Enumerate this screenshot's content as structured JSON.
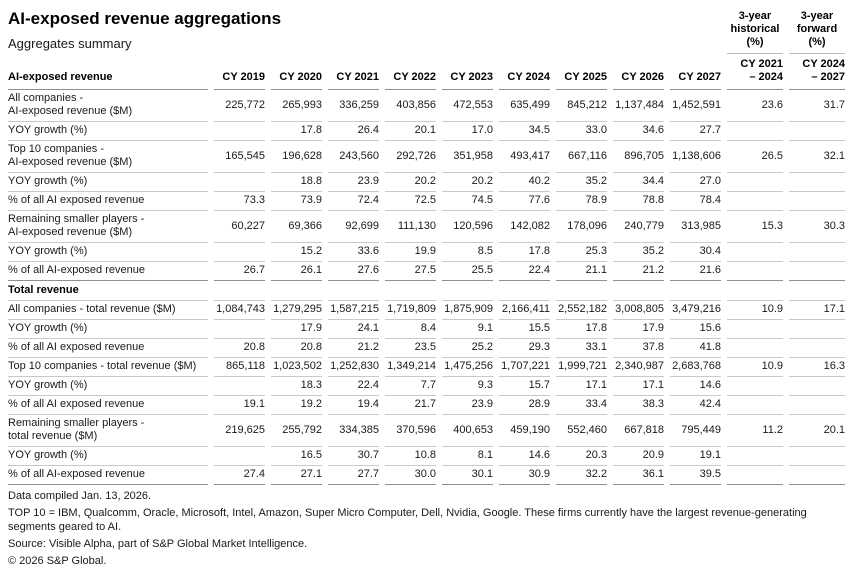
{
  "page": {
    "title": "AI-exposed revenue aggregations",
    "subtitle": "Aggregates summary"
  },
  "table": {
    "first_column_header": "AI-exposed revenue",
    "year_columns": [
      "CY 2019",
      "CY 2020",
      "CY 2021",
      "CY 2022",
      "CY 2023",
      "CY 2024",
      "CY 2025",
      "CY 2026",
      "CY 2027"
    ],
    "extra_columns": [
      {
        "group": "3-year\nhistorical\n(%)",
        "sub": "CY 2021\n– 2024"
      },
      {
        "group": "3-year\nforward\n(%)",
        "sub": "CY 2024\n– 2027"
      }
    ],
    "sections": [
      {
        "title": null,
        "rows": [
          {
            "label": "All companies -\nAI-exposed revenue ($M)",
            "values": [
              "225,772",
              "265,993",
              "336,259",
              "403,856",
              "472,553",
              "635,499",
              "845,212",
              "1,137,484",
              "1,452,591",
              "23.6",
              "31.7"
            ]
          },
          {
            "label": "YOY growth (%)",
            "values": [
              "",
              "17.8",
              "26.4",
              "20.1",
              "17.0",
              "34.5",
              "33.0",
              "34.6",
              "27.7",
              "",
              ""
            ]
          },
          {
            "label": "Top 10 companies -\nAI-exposed revenue ($M)",
            "values": [
              "165,545",
              "196,628",
              "243,560",
              "292,726",
              "351,958",
              "493,417",
              "667,116",
              "896,705",
              "1,138,606",
              "26.5",
              "32.1"
            ]
          },
          {
            "label": "YOY growth (%)",
            "values": [
              "",
              "18.8",
              "23.9",
              "20.2",
              "20.2",
              "40.2",
              "35.2",
              "34.4",
              "27.0",
              "",
              ""
            ]
          },
          {
            "label": "% of all AI exposed revenue",
            "values": [
              "73.3",
              "73.9",
              "72.4",
              "72.5",
              "74.5",
              "77.6",
              "78.9",
              "78.8",
              "78.4",
              "",
              ""
            ]
          },
          {
            "label": "Remaining smaller players -\nAI-exposed revenue ($M)",
            "values": [
              "60,227",
              "69,366",
              "92,699",
              "111,130",
              "120,596",
              "142,082",
              "178,096",
              "240,779",
              "313,985",
              "15.3",
              "30.3"
            ]
          },
          {
            "label": "YOY growth (%)",
            "values": [
              "",
              "15.2",
              "33.6",
              "19.9",
              "8.5",
              "17.8",
              "25.3",
              "35.2",
              "30.4",
              "",
              ""
            ]
          },
          {
            "label": "% of all AI-exposed revenue",
            "values": [
              "26.7",
              "26.1",
              "27.6",
              "27.5",
              "25.5",
              "22.4",
              "21.1",
              "21.2",
              "21.6",
              "",
              ""
            ]
          }
        ]
      },
      {
        "title": "Total revenue",
        "rows": [
          {
            "label": "All companies - total revenue ($M)",
            "values": [
              "1,084,743",
              "1,279,295",
              "1,587,215",
              "1,719,809",
              "1,875,909",
              "2,166,411",
              "2,552,182",
              "3,008,805",
              "3,479,216",
              "10.9",
              "17.1"
            ]
          },
          {
            "label": "YOY growth (%)",
            "values": [
              "",
              "17.9",
              "24.1",
              "8.4",
              "9.1",
              "15.5",
              "17.8",
              "17.9",
              "15.6",
              "",
              ""
            ]
          },
          {
            "label": "% of all AI exposed revenue",
            "values": [
              "20.8",
              "20.8",
              "21.2",
              "23.5",
              "25.2",
              "29.3",
              "33.1",
              "37.8",
              "41.8",
              "",
              ""
            ]
          },
          {
            "label": "Top 10 companies - total revenue ($M)",
            "values": [
              "865,118",
              "1,023,502",
              "1,252,830",
              "1,349,214",
              "1,475,256",
              "1,707,221",
              "1,999,721",
              "2,340,987",
              "2,683,768",
              "10.9",
              "16.3"
            ]
          },
          {
            "label": "YOY growth (%)",
            "values": [
              "",
              "18.3",
              "22.4",
              "7.7",
              "9.3",
              "15.7",
              "17.1",
              "17.1",
              "14.6",
              "",
              ""
            ]
          },
          {
            "label": "% of all AI exposed revenue",
            "values": [
              "19.1",
              "19.2",
              "19.4",
              "21.7",
              "23.9",
              "28.9",
              "33.4",
              "38.3",
              "42.4",
              "",
              ""
            ]
          },
          {
            "label": "Remaining smaller players -\ntotal revenue ($M)",
            "values": [
              "219,625",
              "255,792",
              "334,385",
              "370,596",
              "400,653",
              "459,190",
              "552,460",
              "667,818",
              "795,449",
              "11.2",
              "20.1"
            ]
          },
          {
            "label": "YOY growth (%)",
            "values": [
              "",
              "16.5",
              "30.7",
              "10.8",
              "8.1",
              "14.6",
              "20.3",
              "20.9",
              "19.1",
              "",
              ""
            ]
          },
          {
            "label": "% of all AI-exposed revenue",
            "values": [
              "27.4",
              "27.1",
              "27.7",
              "30.0",
              "30.1",
              "30.9",
              "32.2",
              "36.1",
              "39.5",
              "",
              ""
            ]
          }
        ]
      }
    ]
  },
  "footer": {
    "lines": [
      "Data compiled Jan. 13, 2026.",
      "TOP 10 = IBM, Qualcomm, Oracle, Microsoft, Intel, Amazon, Super Micro Computer, Dell, Nvidia, Google. These firms currently have the largest revenue-generating segments geared to AI.",
      "Source: Visible Alpha, part of S&P Global Market Intelligence.",
      "© 2026 S&P Global."
    ]
  }
}
